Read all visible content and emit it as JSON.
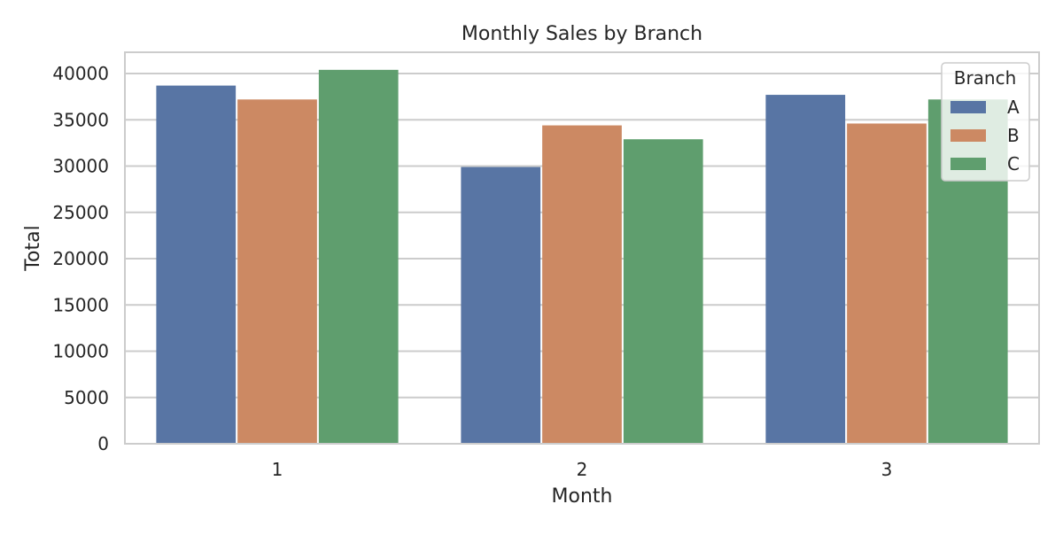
{
  "chart_data": {
    "type": "bar",
    "title": "Monthly Sales by Branch",
    "xlabel": "Month",
    "ylabel": "Total",
    "categories": [
      "1",
      "2",
      "3"
    ],
    "series": [
      {
        "name": "A",
        "color": "#5875a4",
        "values": [
          38700,
          29900,
          37700
        ]
      },
      {
        "name": "B",
        "color": "#cc8963",
        "values": [
          37200,
          34400,
          34600
        ]
      },
      {
        "name": "C",
        "color": "#5f9e6e",
        "values": [
          40400,
          32900,
          37200
        ]
      }
    ],
    "ylim": [
      0,
      42300
    ],
    "yticks": [
      0,
      5000,
      10000,
      15000,
      20000,
      25000,
      30000,
      35000,
      40000
    ],
    "grid": "horizontal",
    "legend": {
      "title": "Branch",
      "placement": "top-right"
    }
  }
}
